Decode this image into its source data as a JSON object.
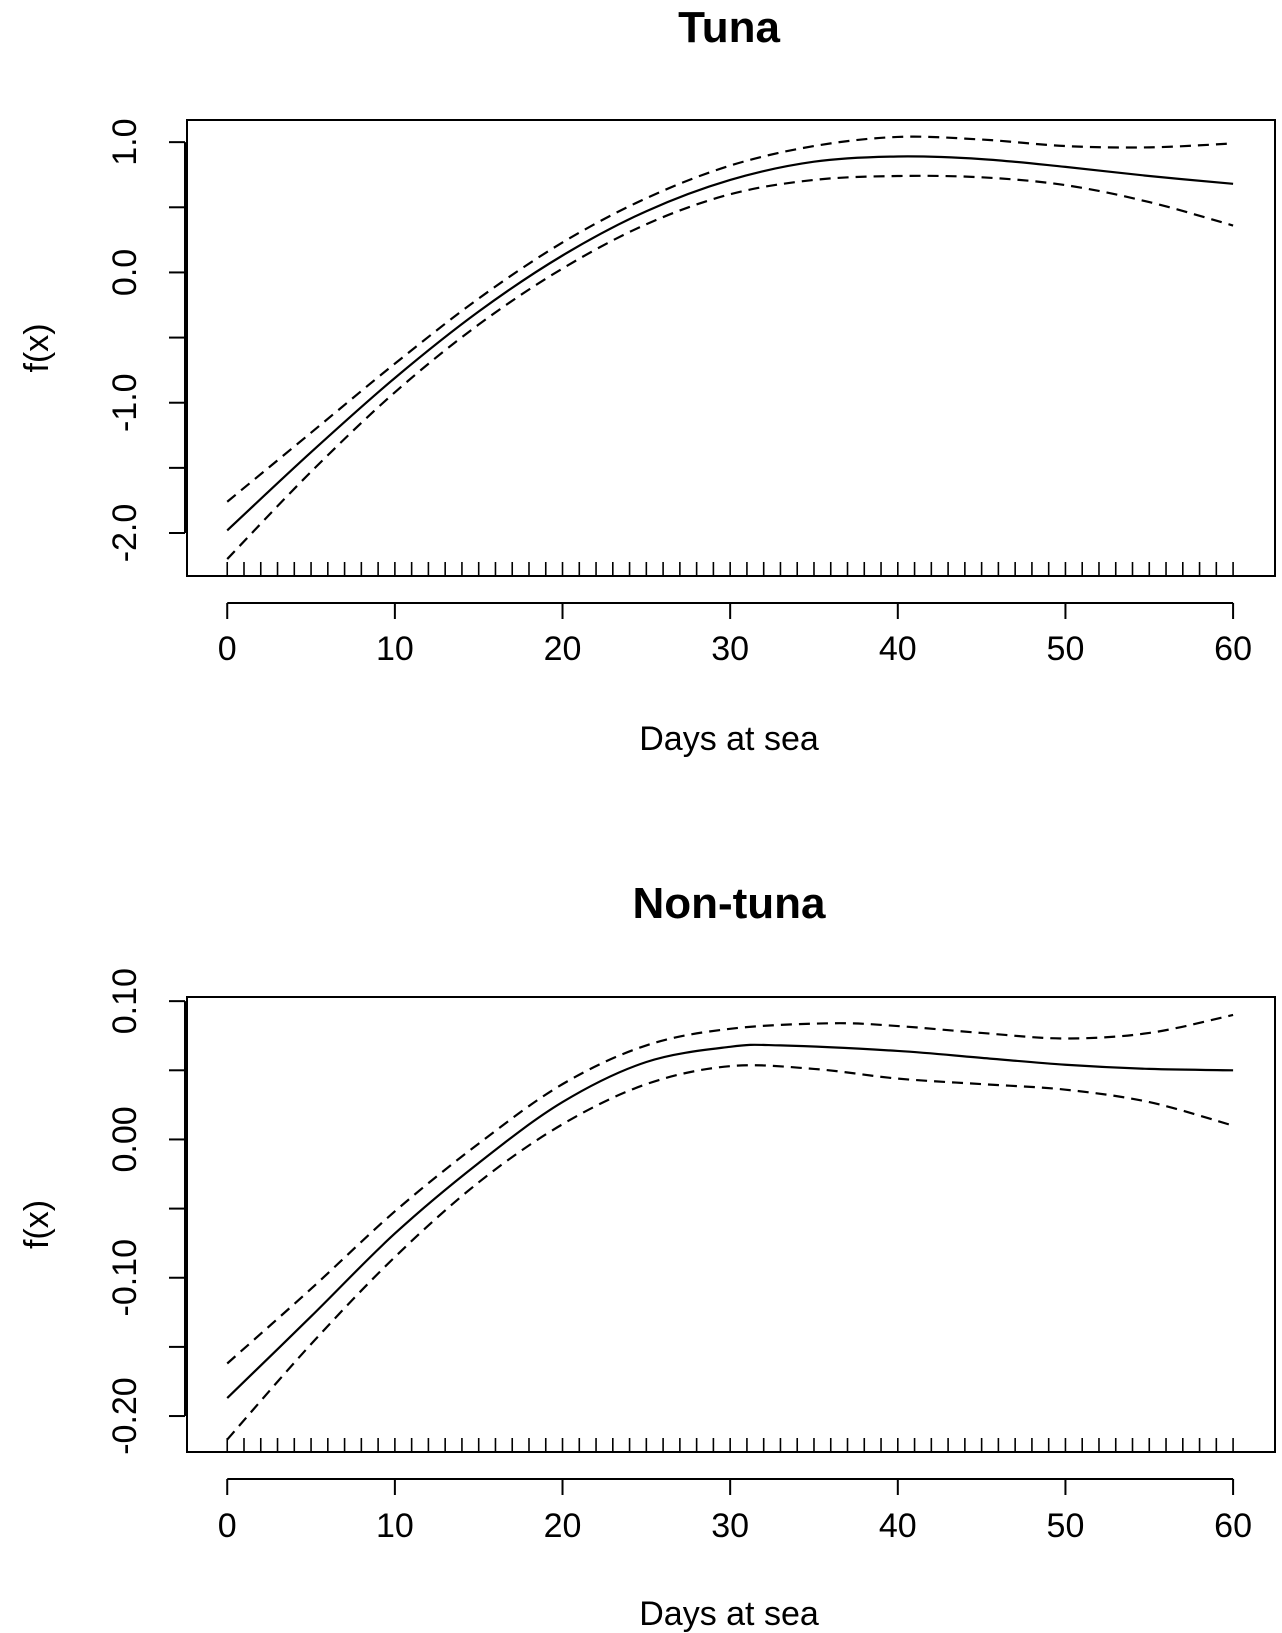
{
  "chart_data": [
    {
      "type": "line",
      "title": "Tuna",
      "xlabel": "Days at sea",
      "ylabel": "f(x)",
      "xlim": [
        -2.4,
        62.5
      ],
      "ylim": [
        -2.33,
        1.17
      ],
      "x_ticks": [
        0,
        10,
        20,
        30,
        40,
        50,
        60
      ],
      "x_tick_labels": [
        "0",
        "10",
        "20",
        "30",
        "40",
        "50",
        "60"
      ],
      "y_ticks": [
        -2.0,
        -1.5,
        -1.0,
        -0.5,
        0.0,
        0.5,
        1.0
      ],
      "y_tick_labels": [
        "-2.0",
        "",
        "-1.0",
        "",
        "0.0",
        "",
        "1.0"
      ],
      "grid": false,
      "rug": [
        0,
        1,
        2,
        3,
        4,
        5,
        6,
        7,
        8,
        9,
        10,
        11,
        12,
        13,
        14,
        15,
        16,
        17,
        18,
        19,
        20,
        21,
        22,
        23,
        24,
        25,
        26,
        27,
        28,
        29,
        30,
        31,
        32,
        33,
        34,
        35,
        36,
        37,
        38,
        39,
        40,
        41,
        42,
        43,
        44,
        45,
        46,
        47,
        48,
        49,
        50,
        51,
        52,
        53,
        54,
        55,
        56,
        57,
        58,
        59,
        60
      ],
      "series": [
        {
          "style": "solid",
          "color": "#000000",
          "x": [
            0,
            5,
            10,
            15,
            20,
            25,
            30,
            35,
            40,
            45,
            50,
            55,
            60
          ],
          "y": [
            -1.98,
            -1.38,
            -0.81,
            -0.3,
            0.13,
            0.47,
            0.71,
            0.85,
            0.89,
            0.87,
            0.81,
            0.74,
            0.68
          ]
        },
        {
          "style": "dashed",
          "color": "#000000",
          "x": [
            0,
            5,
            10,
            15,
            20,
            25,
            30,
            35,
            40,
            45,
            50,
            55,
            60
          ],
          "y": [
            -1.76,
            -1.23,
            -0.7,
            -0.2,
            0.23,
            0.57,
            0.82,
            0.97,
            1.04,
            1.02,
            0.97,
            0.96,
            0.99
          ]
        },
        {
          "style": "dashed",
          "color": "#000000",
          "x": [
            0,
            5,
            10,
            15,
            20,
            25,
            30,
            35,
            40,
            45,
            50,
            55,
            60
          ],
          "y": [
            -2.2,
            -1.53,
            -0.92,
            -0.4,
            0.03,
            0.37,
            0.6,
            0.71,
            0.74,
            0.73,
            0.67,
            0.54,
            0.36
          ]
        }
      ]
    },
    {
      "type": "line",
      "title": "Non-tuna",
      "xlabel": "Days at sea",
      "ylabel": "f(x)",
      "xlim": [
        -2.4,
        62.5
      ],
      "ylim": [
        -0.226,
        0.103
      ],
      "x_ticks": [
        0,
        10,
        20,
        30,
        40,
        50,
        60
      ],
      "x_tick_labels": [
        "0",
        "10",
        "20",
        "30",
        "40",
        "50",
        "60"
      ],
      "y_ticks": [
        -0.2,
        -0.15,
        -0.1,
        -0.05,
        0.0,
        0.05,
        0.1
      ],
      "y_tick_labels": [
        "-0.20",
        "",
        "-0.10",
        "",
        "0.00",
        "",
        "0.10"
      ],
      "grid": false,
      "rug": [
        0,
        1,
        2,
        3,
        4,
        5,
        6,
        7,
        8,
        9,
        10,
        11,
        12,
        13,
        14,
        15,
        16,
        17,
        18,
        19,
        20,
        21,
        22,
        23,
        24,
        25,
        26,
        27,
        28,
        29,
        30,
        31,
        32,
        33,
        34,
        35,
        36,
        37,
        38,
        39,
        40,
        41,
        42,
        43,
        44,
        45,
        46,
        47,
        48,
        49,
        50,
        51,
        52,
        53,
        54,
        55,
        56,
        57,
        58,
        59,
        60
      ],
      "series": [
        {
          "style": "solid",
          "color": "#000000",
          "x": [
            0,
            5,
            10,
            15,
            20,
            25,
            30,
            33,
            40,
            45,
            50,
            55,
            60
          ],
          "y": [
            -0.187,
            -0.128,
            -0.068,
            -0.017,
            0.027,
            0.056,
            0.067,
            0.068,
            0.064,
            0.059,
            0.054,
            0.051,
            0.05
          ]
        },
        {
          "style": "dashed",
          "color": "#000000",
          "x": [
            0,
            5,
            10,
            15,
            20,
            25,
            30,
            36,
            40,
            45,
            50,
            55,
            60
          ],
          "y": [
            -0.162,
            -0.108,
            -0.052,
            -0.003,
            0.04,
            0.068,
            0.08,
            0.084,
            0.082,
            0.077,
            0.073,
            0.077,
            0.09
          ]
        },
        {
          "style": "dashed",
          "color": "#000000",
          "x": [
            0,
            5,
            10,
            15,
            20,
            25,
            30,
            35,
            40,
            45,
            50,
            55,
            60
          ],
          "y": [
            -0.217,
            -0.148,
            -0.085,
            -0.031,
            0.011,
            0.04,
            0.053,
            0.051,
            0.044,
            0.04,
            0.036,
            0.027,
            0.01
          ]
        }
      ]
    }
  ]
}
